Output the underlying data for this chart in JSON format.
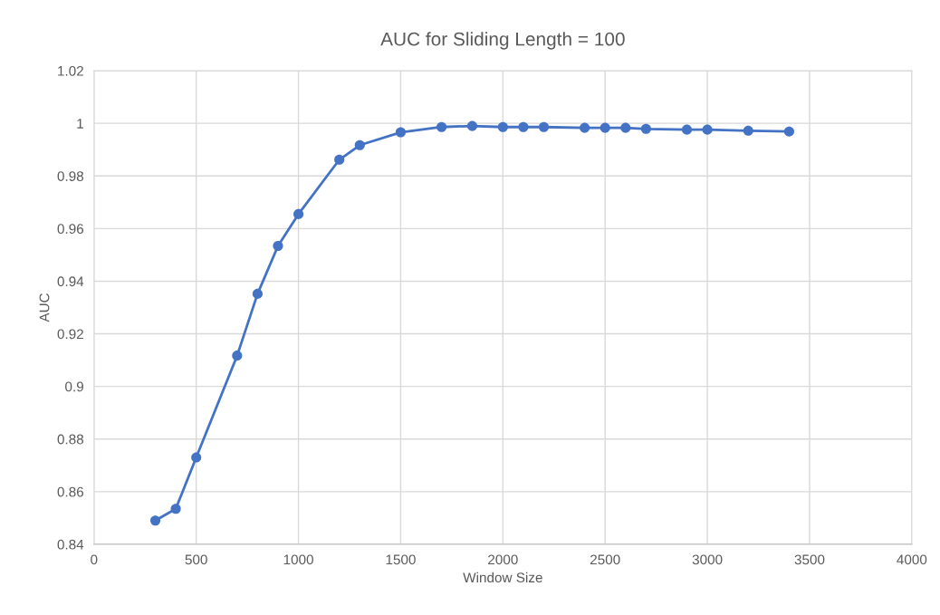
{
  "chart_data": {
    "type": "line",
    "title": "AUC for Sliding Length = 100",
    "xlabel": "Window Size",
    "ylabel": "AUC",
    "x": [
      300,
      400,
      500,
      700,
      800,
      900,
      1000,
      1200,
      1300,
      1500,
      1700,
      1850,
      2000,
      2100,
      2200,
      2400,
      2500,
      2600,
      2700,
      2900,
      3000,
      3200,
      3400
    ],
    "series": [
      {
        "color": "#4472c4",
        "values": [
          0.849,
          0.8535,
          0.873,
          0.9117,
          0.9352,
          0.9534,
          0.9655,
          0.9862,
          0.9917,
          0.9966,
          0.9986,
          0.999,
          0.9986,
          0.9986,
          0.9986,
          0.9983,
          0.9983,
          0.9983,
          0.9979,
          0.9976,
          0.9976,
          0.9972,
          0.9969
        ]
      }
    ],
    "xlim": [
      0,
      4000
    ],
    "xticks": [
      0,
      500,
      1000,
      1500,
      2000,
      2500,
      3000,
      3500,
      4000
    ],
    "ylim": [
      0.84,
      1.02
    ],
    "yticks": [
      0.84,
      0.86,
      0.88,
      0.9,
      0.92,
      0.94,
      0.96,
      0.98,
      1,
      1.02
    ],
    "grid": true,
    "marker": "circle",
    "line_style": "solid"
  }
}
